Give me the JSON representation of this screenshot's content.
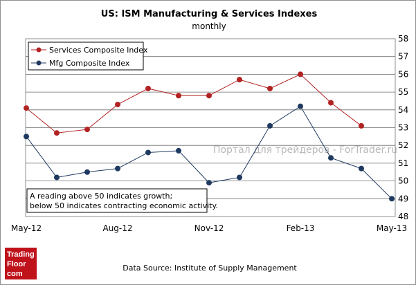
{
  "chart_data": {
    "type": "line",
    "title": "US: ISM Manufacturing & Services Indexes",
    "subtitle": "monthly",
    "x": [
      "May-12",
      "Jun-12",
      "Jul-12",
      "Aug-12",
      "Sep-12",
      "Oct-12",
      "Nov-12",
      "Dec-12",
      "Jan-13",
      "Feb-13",
      "Mar-13",
      "Apr-13",
      "May-13"
    ],
    "x_tick_labels": [
      "May-12",
      "Aug-12",
      "Nov-12",
      "Feb-13",
      "May-13"
    ],
    "series": [
      {
        "name": "Services Composite Index",
        "color": "#b22222",
        "values": [
          54.1,
          52.7,
          52.9,
          54.3,
          55.2,
          54.8,
          54.8,
          55.7,
          55.2,
          56.0,
          54.4,
          53.1,
          null
        ]
      },
      {
        "name": "Mfg Composite Index",
        "color": "#1f3a60",
        "values": [
          52.5,
          50.2,
          50.5,
          50.7,
          51.6,
          51.7,
          49.9,
          50.2,
          53.1,
          54.2,
          51.3,
          50.7,
          49.0
        ]
      }
    ],
    "ylim": [
      48,
      58
    ],
    "yticks": [
      48,
      49,
      50,
      51,
      52,
      53,
      54,
      55,
      56,
      57,
      58
    ],
    "y_axis_side": "right",
    "grid": "horizontal",
    "legend": "top-left",
    "annotation": [
      "A reading above 50 indicates growth;",
      "below 50 indicates contracting economic activity."
    ],
    "watermark": "Портал для трейдеров - ForTrader.ru",
    "source": "Data Source:  Institute of Supply Management"
  },
  "logo": {
    "line1": "Trading",
    "line2": "Floor",
    "line3": "com",
    "color": "#c0121b"
  }
}
